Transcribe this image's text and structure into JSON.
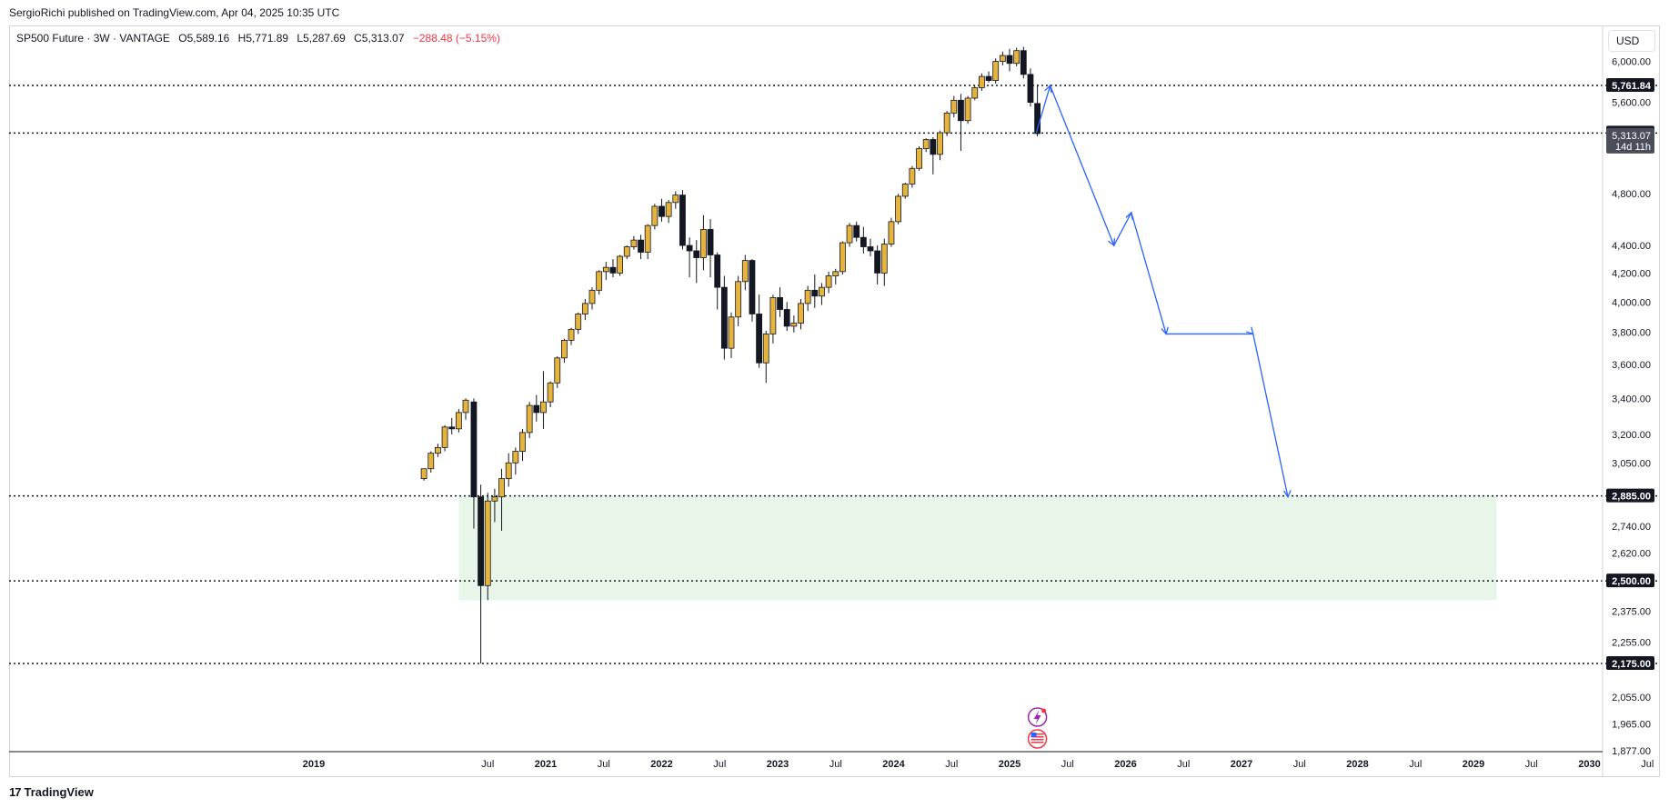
{
  "header": {
    "published": "SergioRichi published on TradingView.com, Apr 04, 2025 10:35 UTC"
  },
  "symbol": {
    "name": "SP500 Future · 3W · VANTAGE",
    "open": "O5,589.16",
    "high": "H5,771.89",
    "low": "L5,287.69",
    "close": "C5,313.07",
    "change": "−288.48 (−5.15%)",
    "change_color": "#f23645"
  },
  "currency": "USD",
  "footer": {
    "brand": "TradingView"
  },
  "colors": {
    "candle_up": "#e6b43c",
    "candle_down": "#131722",
    "projection": "#2962ff",
    "zone": "#e8f5e9",
    "level_line": "#131722"
  },
  "chart_data": {
    "type": "candlestick",
    "title": "SP500 Future · 3W · VANTAGE",
    "yscale": "log",
    "ylim": [
      1877,
      6400
    ],
    "y_ticks": [
      "6,000.00",
      "5,600.00",
      "4,800.00",
      "4,400.00",
      "4,200.00",
      "4,000.00",
      "3,800.00",
      "3,600.00",
      "3,400.00",
      "3,200.00",
      "3,050.00",
      "2,740.00",
      "2,620.00",
      "2,375.00",
      "2,255.00",
      "2,055.00",
      "1,965.00",
      "1,877.00"
    ],
    "y_tick_values": [
      6000,
      5600,
      4800,
      4400,
      4200,
      4000,
      3800,
      3600,
      3400,
      3200,
      3050,
      2740,
      2620,
      2375,
      2255,
      2055,
      1965,
      1877
    ],
    "x_ticks": [
      {
        "label": "2019",
        "t": 2019.0,
        "bold": true
      },
      {
        "label": "Jul",
        "t": 2020.5,
        "bold": false
      },
      {
        "label": "2021",
        "t": 2021.0,
        "bold": true
      },
      {
        "label": "Jul",
        "t": 2021.5,
        "bold": false
      },
      {
        "label": "2022",
        "t": 2022.0,
        "bold": true
      },
      {
        "label": "Jul",
        "t": 2022.5,
        "bold": false
      },
      {
        "label": "2023",
        "t": 2023.0,
        "bold": true
      },
      {
        "label": "Jul",
        "t": 2023.5,
        "bold": false
      },
      {
        "label": "2024",
        "t": 2024.0,
        "bold": true
      },
      {
        "label": "Jul",
        "t": 2024.5,
        "bold": false
      },
      {
        "label": "2025",
        "t": 2025.0,
        "bold": true
      },
      {
        "label": "Jul",
        "t": 2025.5,
        "bold": false
      },
      {
        "label": "2026",
        "t": 2026.0,
        "bold": true
      },
      {
        "label": "Jul",
        "t": 2026.5,
        "bold": false
      },
      {
        "label": "2027",
        "t": 2027.0,
        "bold": true
      },
      {
        "label": "Jul",
        "t": 2027.5,
        "bold": false
      },
      {
        "label": "2028",
        "t": 2028.0,
        "bold": true
      },
      {
        "label": "Jul",
        "t": 2028.5,
        "bold": false
      },
      {
        "label": "2029",
        "t": 2029.0,
        "bold": true
      },
      {
        "label": "Jul",
        "t": 2029.5,
        "bold": false
      },
      {
        "label": "2030",
        "t": 2030.0,
        "bold": true
      },
      {
        "label": "Jul",
        "t": 2030.5,
        "bold": false
      }
    ],
    "horizontal_levels": [
      {
        "value": 5761.84,
        "label": "5,761.84"
      },
      {
        "value": 5317.88,
        "label": "5,317.88"
      },
      {
        "value": 2885.0,
        "label": "2,885.00"
      },
      {
        "value": 2500.0,
        "label": "2,500.00"
      },
      {
        "value": 2175.0,
        "label": "2,175.00"
      }
    ],
    "price_tag": {
      "value": 5313.07,
      "label": "5,313.07",
      "countdown": "14d 11h"
    },
    "support_zone": {
      "t_start": 2020.25,
      "t_end": 2029.2,
      "low": 2420,
      "high": 2885
    },
    "projection_path": [
      [
        2025.23,
        5320
      ],
      [
        2025.35,
        5760
      ],
      [
        2025.9,
        4400
      ],
      [
        2026.05,
        4650
      ],
      [
        2026.35,
        3790
      ],
      [
        2027.1,
        3790
      ],
      [
        2027.4,
        2880
      ]
    ],
    "projection_arrowheads": [
      {
        "from": [
          2025.29,
          5560
        ],
        "to": [
          2025.35,
          5760
        ]
      },
      {
        "from": [
          2025.82,
          4560
        ],
        "to": [
          2025.9,
          4400
        ]
      },
      {
        "from": [
          2026.0,
          4520
        ],
        "to": [
          2026.05,
          4650
        ]
      },
      {
        "from": [
          2026.3,
          3950
        ],
        "to": [
          2026.35,
          3790
        ]
      },
      {
        "from": [
          2027.05,
          3830
        ],
        "to": [
          2027.1,
          3790
        ]
      },
      {
        "from": [
          2027.38,
          3000
        ],
        "to": [
          2027.4,
          2880
        ]
      }
    ],
    "candles": [
      [
        2019.95,
        2970,
        3020,
        2960,
        3020
      ],
      [
        2020.01,
        3020,
        3110,
        3000,
        3100
      ],
      [
        2020.07,
        3100,
        3150,
        3080,
        3130
      ],
      [
        2020.13,
        3130,
        3250,
        3110,
        3240
      ],
      [
        2020.19,
        3240,
        3290,
        3200,
        3230
      ],
      [
        2020.25,
        3230,
        3340,
        3210,
        3320
      ],
      [
        2020.31,
        3320,
        3400,
        3280,
        3390
      ],
      [
        2020.38,
        3380,
        3400,
        2730,
        2880
      ],
      [
        2020.44,
        2880,
        2940,
        2175,
        2480
      ],
      [
        2020.5,
        2480,
        2900,
        2420,
        2860
      ],
      [
        2020.56,
        2860,
        2920,
        2760,
        2880
      ],
      [
        2020.62,
        2880,
        3020,
        2720,
        2970
      ],
      [
        2020.68,
        2970,
        3100,
        2930,
        3050
      ],
      [
        2020.74,
        3050,
        3130,
        2990,
        3110
      ],
      [
        2020.8,
        3110,
        3230,
        3060,
        3210
      ],
      [
        2020.86,
        3210,
        3380,
        3180,
        3360
      ],
      [
        2020.92,
        3360,
        3420,
        3270,
        3320
      ],
      [
        2020.98,
        3320,
        3560,
        3230,
        3380
      ],
      [
        2021.04,
        3380,
        3500,
        3350,
        3490
      ],
      [
        2021.1,
        3490,
        3650,
        3460,
        3640
      ],
      [
        2021.16,
        3640,
        3760,
        3610,
        3750
      ],
      [
        2021.22,
        3750,
        3830,
        3720,
        3820
      ],
      [
        2021.28,
        3820,
        3930,
        3790,
        3920
      ],
      [
        2021.34,
        3920,
        4020,
        3880,
        3990
      ],
      [
        2021.4,
        3990,
        4100,
        3950,
        4080
      ],
      [
        2021.46,
        4080,
        4220,
        4050,
        4210
      ],
      [
        2021.52,
        4210,
        4280,
        4150,
        4240
      ],
      [
        2021.58,
        4240,
        4300,
        4170,
        4200
      ],
      [
        2021.64,
        4200,
        4330,
        4180,
        4320
      ],
      [
        2021.7,
        4320,
        4400,
        4300,
        4390
      ],
      [
        2021.76,
        4390,
        4470,
        4370,
        4440
      ],
      [
        2021.82,
        4440,
        4480,
        4300,
        4350
      ],
      [
        2021.88,
        4350,
        4560,
        4300,
        4550
      ],
      [
        2021.94,
        4550,
        4720,
        4520,
        4700
      ],
      [
        2022.0,
        4700,
        4760,
        4580,
        4620
      ],
      [
        2022.06,
        4620,
        4750,
        4570,
        4730
      ],
      [
        2022.12,
        4730,
        4820,
        4680,
        4790
      ],
      [
        2022.18,
        4790,
        4830,
        4370,
        4400
      ],
      [
        2022.24,
        4400,
        4460,
        4170,
        4360
      ],
      [
        2022.3,
        4360,
        4440,
        4130,
        4310
      ],
      [
        2022.36,
        4310,
        4630,
        4220,
        4520
      ],
      [
        2022.42,
        4520,
        4600,
        4170,
        4330
      ],
      [
        2022.48,
        4330,
        4350,
        3950,
        4100
      ],
      [
        2022.54,
        4100,
        4180,
        3630,
        3700
      ],
      [
        2022.6,
        3700,
        3930,
        3640,
        3900
      ],
      [
        2022.66,
        3900,
        4180,
        3840,
        4140
      ],
      [
        2022.72,
        4140,
        4330,
        4080,
        4290
      ],
      [
        2022.78,
        4290,
        4300,
        3870,
        3920
      ],
      [
        2022.84,
        3920,
        4050,
        3580,
        3610
      ],
      [
        2022.9,
        3610,
        3810,
        3490,
        3790
      ],
      [
        2022.96,
        3790,
        4050,
        3730,
        4030
      ],
      [
        2023.02,
        4030,
        4100,
        3900,
        3950
      ],
      [
        2023.08,
        3950,
        4000,
        3810,
        3840
      ],
      [
        2023.14,
        3840,
        3910,
        3800,
        3860
      ],
      [
        2023.2,
        3860,
        4020,
        3820,
        3990
      ],
      [
        2023.26,
        3990,
        4110,
        3940,
        4080
      ],
      [
        2023.32,
        4080,
        4190,
        3960,
        4040
      ],
      [
        2023.38,
        4040,
        4130,
        3980,
        4100
      ],
      [
        2023.44,
        4100,
        4210,
        4060,
        4180
      ],
      [
        2023.5,
        4180,
        4230,
        4120,
        4210
      ],
      [
        2023.56,
        4210,
        4430,
        4190,
        4420
      ],
      [
        2023.62,
        4420,
        4570,
        4390,
        4550
      ],
      [
        2023.68,
        4550,
        4580,
        4430,
        4460
      ],
      [
        2023.74,
        4460,
        4540,
        4340,
        4390
      ],
      [
        2023.8,
        4390,
        4450,
        4320,
        4360
      ],
      [
        2023.86,
        4360,
        4400,
        4120,
        4200
      ],
      [
        2023.92,
        4200,
        4450,
        4110,
        4410
      ],
      [
        2023.98,
        4410,
        4610,
        4390,
        4580
      ],
      [
        2024.04,
        4580,
        4800,
        4560,
        4780
      ],
      [
        2024.1,
        4780,
        4890,
        4760,
        4880
      ],
      [
        2024.16,
        4880,
        5030,
        4850,
        5010
      ],
      [
        2024.22,
        5010,
        5200,
        4990,
        5180
      ],
      [
        2024.28,
        5180,
        5270,
        5150,
        5260
      ],
      [
        2024.34,
        5260,
        5280,
        4960,
        5130
      ],
      [
        2024.4,
        5130,
        5340,
        5080,
        5320
      ],
      [
        2024.46,
        5320,
        5520,
        5290,
        5500
      ],
      [
        2024.52,
        5500,
        5660,
        5460,
        5620
      ],
      [
        2024.58,
        5620,
        5680,
        5160,
        5430
      ],
      [
        2024.64,
        5430,
        5660,
        5400,
        5640
      ],
      [
        2024.7,
        5640,
        5760,
        5620,
        5740
      ],
      [
        2024.76,
        5740,
        5880,
        5710,
        5850
      ],
      [
        2024.82,
        5850,
        5900,
        5790,
        5810
      ],
      [
        2024.88,
        5810,
        6030,
        5780,
        6000
      ],
      [
        2024.94,
        6000,
        6100,
        5960,
        6060
      ],
      [
        2025.0,
        6060,
        6130,
        5900,
        5980
      ],
      [
        2025.06,
        5980,
        6140,
        5950,
        6110
      ],
      [
        2025.12,
        6110,
        6150,
        5830,
        5870
      ],
      [
        2025.18,
        5870,
        5930,
        5560,
        5600
      ],
      [
        2025.24,
        5589.16,
        5771.89,
        5287.69,
        5313.07
      ]
    ]
  }
}
